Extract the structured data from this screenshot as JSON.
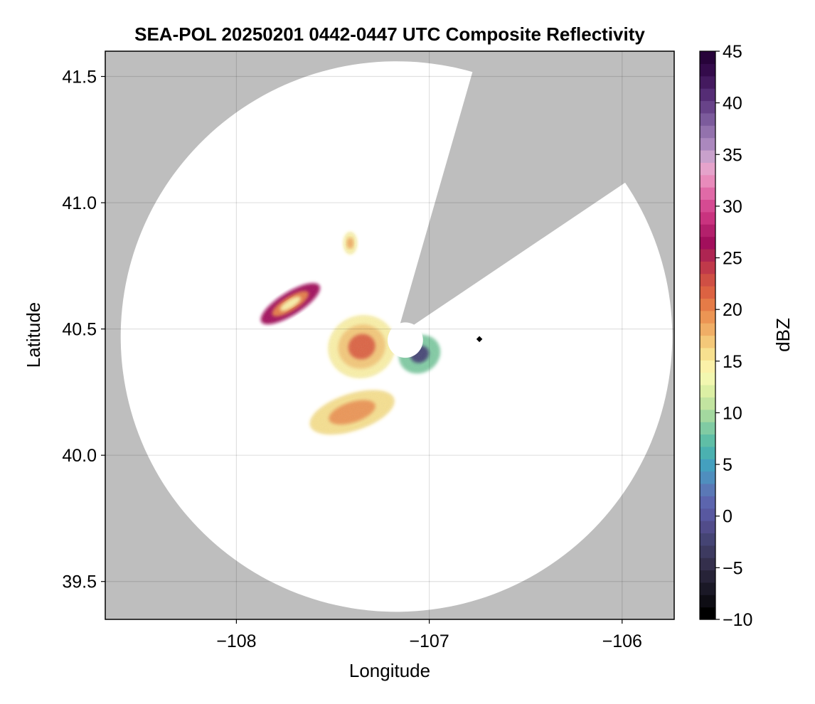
{
  "chart_data": {
    "type": "heatmap",
    "title": "SEA-POL 20250201 0442-0447 UTC Composite Reflectivity",
    "xlabel": "Longitude",
    "ylabel": "Latitude",
    "xlim": [
      -108.68,
      -105.73
    ],
    "ylim": [
      39.35,
      41.6
    ],
    "x_ticks": [
      -108,
      -107,
      -106
    ],
    "x_tick_labels": [
      "−108",
      "−107",
      "−106"
    ],
    "y_ticks": [
      39.5,
      40.0,
      40.5,
      41.0,
      41.5
    ],
    "y_tick_labels": [
      "39.5",
      "40.0",
      "40.5",
      "41.0",
      "41.5"
    ],
    "grid": true,
    "background_color": "#bebebe",
    "radar": {
      "center": [
        -107.17,
        40.47
      ],
      "range_deg_lon": 1.43,
      "range_deg_lat": 1.09,
      "blanked_sector_bearing_deg": [
        16,
        56
      ],
      "inner_hole_radius_deg_lat": 0.07
    },
    "echoes": [
      {
        "name": "northwest cell",
        "lon": -107.72,
        "lat": 40.6,
        "max_dbz": 27
      },
      {
        "name": "small northern cell",
        "lon": -107.41,
        "lat": 40.84,
        "max_dbz": 20
      },
      {
        "name": "central echo",
        "lon": -107.35,
        "lat": 40.43,
        "max_dbz": 22
      },
      {
        "name": "southern echo",
        "lon": -107.4,
        "lat": 40.17,
        "max_dbz": 20
      },
      {
        "name": "eastern echo",
        "lon": -107.05,
        "lat": 40.4,
        "max_dbz": 12
      },
      {
        "name": "isolated point",
        "lon": -106.74,
        "lat": 40.46,
        "max_dbz": -10
      }
    ],
    "colorbar": {
      "label": "dBZ",
      "min": -10,
      "max": 45,
      "ticks": [
        -10,
        -5,
        0,
        5,
        10,
        15,
        20,
        25,
        30,
        35,
        40,
        45
      ],
      "tick_labels": [
        "−10",
        "−5",
        "0",
        "5",
        "10",
        "15",
        "20",
        "25",
        "30",
        "35",
        "40",
        "45"
      ],
      "colormap": "spectral-like",
      "colors": [
        "#000000",
        "#0e0d14",
        "#1a1826",
        "#272338",
        "#342f4c",
        "#3d3a60",
        "#454474",
        "#514c8a",
        "#5858a0",
        "#5c65ae",
        "#5a78b6",
        "#4f8ebe",
        "#44a0bf",
        "#4bb1b0",
        "#5fbea6",
        "#80cba3",
        "#a3d89f",
        "#c2e4a0",
        "#dcefa4",
        "#f2f7b0",
        "#fbf1a8",
        "#f7e08f",
        "#f4c879",
        "#f0ae66",
        "#ec9554",
        "#e57b47",
        "#dc6242",
        "#cf4f44",
        "#c0394a",
        "#ae2552",
        "#a20f5c",
        "#b3206c",
        "#c9337f",
        "#d54a92",
        "#e06aa7",
        "#e88bbb",
        "#e5a3cb",
        "#c9a1cc",
        "#ab88be",
        "#9372ad",
        "#7c5b9c",
        "#684389",
        "#552d75",
        "#441a5f",
        "#340b4b",
        "#27033a"
      ]
    }
  }
}
